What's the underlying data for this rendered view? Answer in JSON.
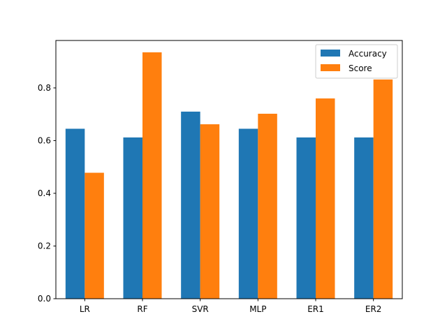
{
  "chart_data": {
    "type": "bar",
    "categories": [
      "LR",
      "RF",
      "SVR",
      "MLP",
      "ER1",
      "ER2"
    ],
    "series": [
      {
        "name": "Accuracy",
        "color": "#1f77b4",
        "values": [
          0.645,
          0.612,
          0.71,
          0.645,
          0.612,
          0.612
        ]
      },
      {
        "name": "Score",
        "color": "#ff7f0e",
        "values": [
          0.478,
          0.935,
          0.662,
          0.702,
          0.76,
          0.832
        ]
      }
    ],
    "ylim": [
      0,
      0.98
    ],
    "yticks": [
      0.0,
      0.2,
      0.4,
      0.6,
      0.8
    ],
    "ytick_labels": [
      "0.0",
      "0.2",
      "0.4",
      "0.6",
      "0.8"
    ],
    "legend_position": "top-right",
    "grid": false
  }
}
